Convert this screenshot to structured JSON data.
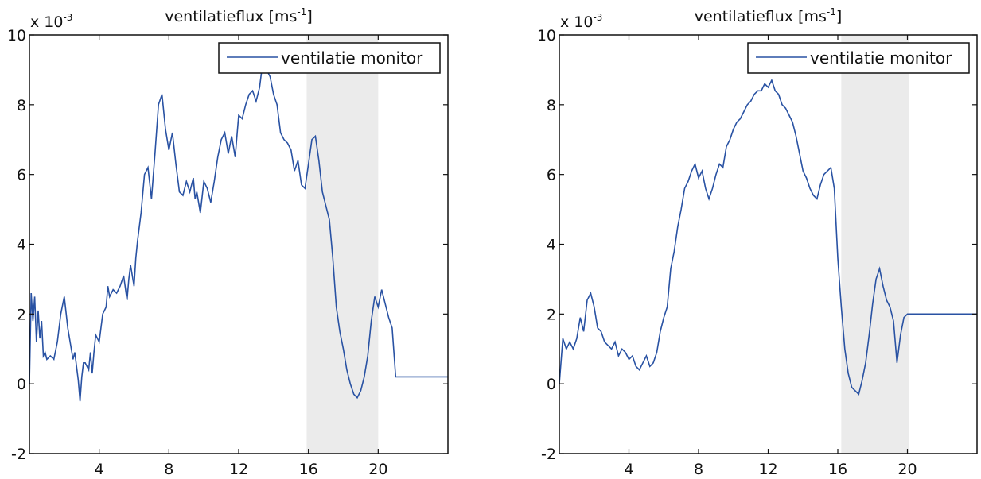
{
  "chart_data": [
    {
      "type": "line",
      "title_text": "ventilatieflux [ms",
      "title_sup": "-1",
      "title_close": "]",
      "multiplier_text": "x 10",
      "multiplier_sup": "-3",
      "xlabel": "",
      "ylabel": "",
      "xlim": [
        0,
        24
      ],
      "ylim": [
        -2,
        10
      ],
      "x_ticks": [
        4,
        8,
        12,
        16,
        20
      ],
      "y_ticks": [
        -2,
        0,
        2,
        4,
        6,
        8,
        10
      ],
      "grid": false,
      "legend_position": "top-right",
      "shaded_region": [
        15.9,
        20
      ],
      "color": "#2952a3",
      "shade_color": "#ebebeb",
      "series": [
        {
          "name": "ventilatie monitor",
          "x": [
            0,
            0.1,
            0.2,
            0.3,
            0.4,
            0.5,
            0.6,
            0.7,
            0.8,
            0.9,
            1.0,
            1.2,
            1.4,
            1.6,
            1.8,
            2.0,
            2.2,
            2.4,
            2.5,
            2.6,
            2.8,
            2.9,
            3.0,
            3.1,
            3.2,
            3.3,
            3.4,
            3.5,
            3.6,
            3.7,
            3.8,
            4.0,
            4.2,
            4.4,
            4.5,
            4.6,
            4.8,
            5.0,
            5.2,
            5.4,
            5.6,
            5.7,
            5.8,
            6.0,
            6.1,
            6.2,
            6.4,
            6.6,
            6.8,
            7.0,
            7.2,
            7.4,
            7.6,
            7.8,
            8.0,
            8.2,
            8.4,
            8.6,
            8.8,
            9.0,
            9.2,
            9.4,
            9.5,
            9.6,
            9.8,
            10.0,
            10.2,
            10.4,
            10.6,
            10.8,
            11.0,
            11.2,
            11.4,
            11.6,
            11.8,
            12.0,
            12.2,
            12.4,
            12.6,
            12.8,
            13.0,
            13.2,
            13.4,
            13.6,
            13.8,
            14.0,
            14.2,
            14.4,
            14.6,
            14.8,
            15.0,
            15.2,
            15.4,
            15.6,
            15.8,
            16.0,
            16.2,
            16.4,
            16.6,
            16.8,
            17.0,
            17.2,
            17.4,
            17.6,
            17.8,
            18.0,
            18.2,
            18.4,
            18.6,
            18.8,
            19.0,
            19.2,
            19.4,
            19.6,
            19.8,
            20.0,
            20.2,
            20.4,
            20.6,
            20.8,
            21.0,
            21.2,
            21.4,
            21.6,
            21.8,
            22.0,
            22.2,
            22.4,
            22.6,
            22.8,
            23.0,
            23.2,
            23.4,
            23.6,
            23.8,
            24.0
          ],
          "y": [
            0.0,
            2.6,
            1.8,
            2.5,
            1.2,
            2.1,
            1.3,
            1.8,
            0.8,
            0.9,
            0.7,
            0.8,
            0.7,
            1.2,
            2.0,
            2.5,
            1.6,
            1.0,
            0.7,
            0.9,
            0.1,
            -0.5,
            0.2,
            0.6,
            0.6,
            0.5,
            0.4,
            0.9,
            0.3,
            0.9,
            1.4,
            1.2,
            2.0,
            2.2,
            2.8,
            2.5,
            2.7,
            2.6,
            2.8,
            3.1,
            2.4,
            3.0,
            3.4,
            2.8,
            3.6,
            4.1,
            4.9,
            6.0,
            6.2,
            5.3,
            6.6,
            8.0,
            8.3,
            7.3,
            6.7,
            7.2,
            6.3,
            5.5,
            5.4,
            5.8,
            5.5,
            5.9,
            5.3,
            5.5,
            4.9,
            5.8,
            5.6,
            5.2,
            5.8,
            6.5,
            7.0,
            7.2,
            6.6,
            7.1,
            6.5,
            7.7,
            7.6,
            8.0,
            8.3,
            8.4,
            8.1,
            8.5,
            9.3,
            9.0,
            8.8,
            8.3,
            8.0,
            7.2,
            7.0,
            6.9,
            6.7,
            6.1,
            6.4,
            5.7,
            5.6,
            6.3,
            7.0,
            7.1,
            6.4,
            5.5,
            5.1,
            4.7,
            3.6,
            2.2,
            1.5,
            1.0,
            0.4,
            0.0,
            -0.3,
            -0.4,
            -0.2,
            0.2,
            0.8,
            1.8,
            2.5,
            2.2,
            2.7,
            2.3,
            1.9,
            1.6,
            0.2,
            0.2,
            0.2,
            0.2,
            0.2,
            0.2,
            0.2,
            0.2,
            0.2,
            0.2,
            0.2,
            0.2,
            0.2,
            0.2,
            0.2,
            0.2
          ]
        }
      ]
    },
    {
      "type": "line",
      "title_text": "ventilatieflux [ms",
      "title_sup": "-1",
      "title_close": "]",
      "multiplier_text": "x 10",
      "multiplier_sup": "-3",
      "xlabel": "",
      "ylabel": "",
      "xlim": [
        0,
        24
      ],
      "ylim": [
        -2,
        10
      ],
      "x_ticks": [
        4,
        8,
        12,
        16,
        20
      ],
      "y_ticks": [
        -2,
        0,
        2,
        4,
        6,
        8,
        10
      ],
      "grid": false,
      "legend_position": "top-right",
      "shaded_region": [
        16.2,
        20.1
      ],
      "color": "#2952a3",
      "shade_color": "#ebebeb",
      "series": [
        {
          "name": "ventilatie monitor",
          "x": [
            0,
            0.2,
            0.4,
            0.6,
            0.8,
            1.0,
            1.2,
            1.4,
            1.6,
            1.8,
            2.0,
            2.2,
            2.4,
            2.6,
            2.8,
            3.0,
            3.2,
            3.4,
            3.6,
            3.8,
            4.0,
            4.2,
            4.4,
            4.6,
            4.8,
            5.0,
            5.2,
            5.4,
            5.6,
            5.8,
            6.0,
            6.2,
            6.4,
            6.6,
            6.8,
            7.0,
            7.2,
            7.4,
            7.6,
            7.8,
            8.0,
            8.2,
            8.4,
            8.6,
            8.8,
            9.0,
            9.2,
            9.4,
            9.6,
            9.8,
            10.0,
            10.2,
            10.4,
            10.6,
            10.8,
            11.0,
            11.2,
            11.4,
            11.6,
            11.8,
            12.0,
            12.2,
            12.4,
            12.6,
            12.8,
            13.0,
            13.2,
            13.4,
            13.6,
            13.8,
            14.0,
            14.2,
            14.4,
            14.6,
            14.8,
            15.0,
            15.2,
            15.4,
            15.6,
            15.8,
            16.0,
            16.2,
            16.4,
            16.6,
            16.8,
            17.0,
            17.2,
            17.4,
            17.6,
            17.8,
            18.0,
            18.2,
            18.4,
            18.6,
            18.8,
            19.0,
            19.2,
            19.4,
            19.6,
            19.8,
            20.0,
            20.2,
            20.4,
            20.6,
            20.8,
            21.0,
            21.2,
            21.4,
            21.6,
            21.8,
            22.0,
            22.2,
            22.4,
            22.6,
            22.8,
            23.0,
            23.2,
            23.4,
            23.6,
            23.8,
            24.0
          ],
          "y": [
            0.0,
            1.3,
            1.0,
            1.2,
            1.0,
            1.3,
            1.9,
            1.5,
            2.4,
            2.6,
            2.2,
            1.6,
            1.5,
            1.2,
            1.1,
            1.0,
            1.2,
            0.8,
            1.0,
            0.9,
            0.7,
            0.8,
            0.5,
            0.4,
            0.6,
            0.8,
            0.5,
            0.6,
            0.9,
            1.5,
            1.9,
            2.2,
            3.3,
            3.8,
            4.5,
            5.0,
            5.6,
            5.8,
            6.1,
            6.3,
            5.9,
            6.1,
            5.6,
            5.3,
            5.6,
            6.0,
            6.3,
            6.2,
            6.8,
            7.0,
            7.3,
            7.5,
            7.6,
            7.8,
            8.0,
            8.1,
            8.3,
            8.4,
            8.4,
            8.6,
            8.5,
            8.7,
            8.4,
            8.3,
            8.0,
            7.9,
            7.7,
            7.5,
            7.1,
            6.6,
            6.1,
            5.9,
            5.6,
            5.4,
            5.3,
            5.7,
            6.0,
            6.1,
            6.2,
            5.6,
            3.6,
            2.2,
            1.0,
            0.3,
            -0.1,
            -0.2,
            -0.3,
            0.1,
            0.6,
            1.4,
            2.3,
            3.0,
            3.3,
            2.8,
            2.4,
            2.2,
            1.8,
            0.6,
            1.4,
            1.9,
            2.0,
            2.0,
            2.0,
            2.0,
            2.0,
            2.0,
            2.0,
            2.0,
            2.0,
            2.0,
            2.0,
            2.0,
            2.0,
            2.0,
            2.0,
            2.0,
            2.0,
            2.0,
            2.0,
            2.0,
            2.0
          ]
        }
      ]
    }
  ]
}
